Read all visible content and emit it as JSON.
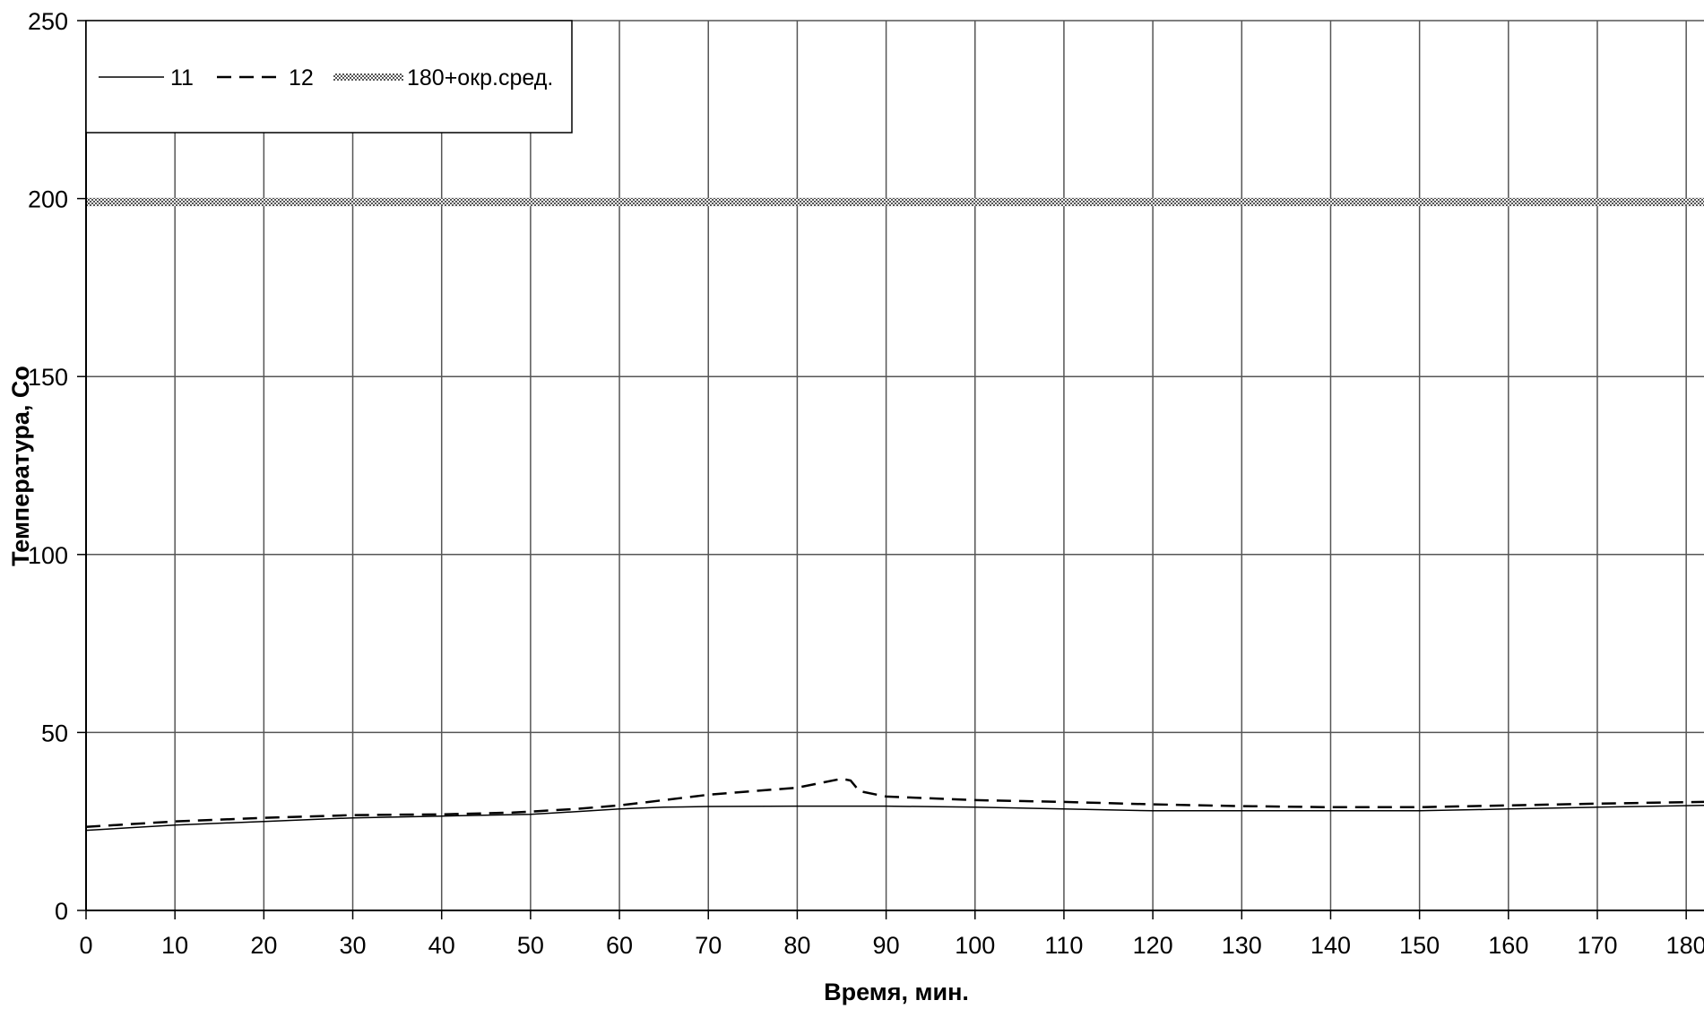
{
  "chart_data": {
    "type": "line",
    "xlabel": "Время, мин.",
    "ylabel": "Температура, Со",
    "xlim": [
      0,
      182
    ],
    "ylim": [
      0,
      250
    ],
    "x_ticks": [
      0,
      10,
      20,
      30,
      40,
      50,
      60,
      70,
      80,
      90,
      100,
      110,
      120,
      130,
      140,
      150,
      160,
      170,
      180
    ],
    "y_ticks": [
      0,
      50,
      100,
      150,
      200,
      250
    ],
    "grid": true,
    "legend_position": "top-left",
    "series": [
      {
        "name": "11",
        "style": "solid",
        "color": "#000000",
        "x": [
          0,
          10,
          20,
          30,
          40,
          50,
          60,
          65,
          70,
          80,
          85,
          90,
          100,
          110,
          120,
          130,
          140,
          150,
          160,
          170,
          182
        ],
        "y": [
          22.5,
          24,
          25,
          26,
          26.5,
          27,
          28.5,
          29,
          29.2,
          29.3,
          29.3,
          29.3,
          29,
          28.5,
          28,
          28,
          28,
          28,
          28.5,
          29,
          29.5
        ]
      },
      {
        "name": "12",
        "style": "dashed",
        "color": "#000000",
        "x": [
          0,
          10,
          20,
          30,
          40,
          48,
          55,
          60,
          65,
          70,
          75,
          80,
          83,
          85,
          86,
          87,
          90,
          95,
          100,
          110,
          120,
          130,
          140,
          150,
          160,
          170,
          182
        ],
        "y": [
          23.5,
          25,
          26,
          26.8,
          27,
          27.5,
          28.5,
          29.5,
          31,
          32.5,
          33.5,
          34.5,
          36,
          37,
          36.5,
          33.5,
          32,
          31.5,
          31,
          30.5,
          29.8,
          29.3,
          29,
          29,
          29.5,
          30,
          30.5
        ]
      },
      {
        "name": "180+окр.сред.",
        "style": "hatched",
        "color": "#888888",
        "x": [
          0,
          182
        ],
        "y": [
          199,
          199
        ]
      }
    ]
  }
}
